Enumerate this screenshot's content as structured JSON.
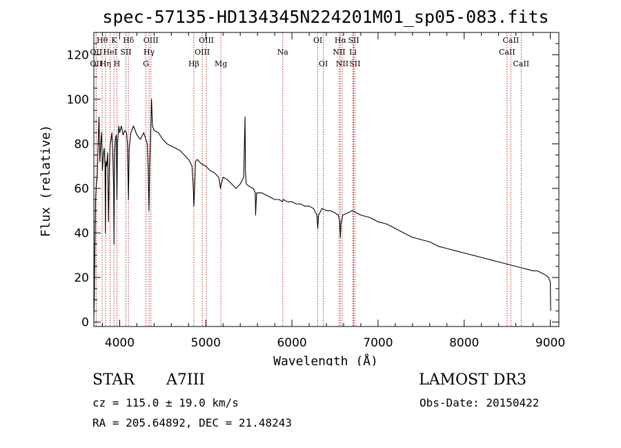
{
  "chart_data": {
    "type": "line",
    "title": "spec-57135-HD134345N224201M01_sp05-083.fits",
    "xlabel": "Wavelength (Å)",
    "ylabel": "Flux (relative)",
    "xlim": [
      3700,
      9100
    ],
    "ylim": [
      -2,
      130
    ],
    "xticks": [
      4000,
      5000,
      6000,
      7000,
      8000,
      9000
    ],
    "yticks": [
      0,
      20,
      40,
      60,
      80,
      100,
      120
    ],
    "grid": false,
    "series": [
      {
        "name": "spectrum",
        "color": "#000000",
        "x": [
          3700,
          3705,
          3710,
          3720,
          3730,
          3740,
          3750,
          3760,
          3770,
          3780,
          3790,
          3800,
          3810,
          3820,
          3830,
          3835,
          3840,
          3850,
          3860,
          3870,
          3880,
          3890,
          3900,
          3910,
          3920,
          3930,
          3934,
          3940,
          3950,
          3960,
          3968,
          3975,
          3990,
          4000,
          4020,
          4040,
          4060,
          4080,
          4090,
          4102,
          4110,
          4130,
          4160,
          4200,
          4240,
          4280,
          4320,
          4330,
          4340,
          4350,
          4360,
          4370,
          4380,
          4400,
          4450,
          4500,
          4550,
          4600,
          4650,
          4700,
          4750,
          4800,
          4840,
          4855,
          4861,
          4868,
          4880,
          4900,
          4950,
          5000,
          5050,
          5100,
          5150,
          5170,
          5180,
          5200,
          5250,
          5300,
          5350,
          5400,
          5440,
          5455,
          5460,
          5470,
          5500,
          5550,
          5575,
          5578,
          5590,
          5650,
          5700,
          5750,
          5800,
          5850,
          5890,
          5900,
          5950,
          6000,
          6050,
          6100,
          6150,
          6200,
          6250,
          6290,
          6300,
          6310,
          6350,
          6400,
          6450,
          6500,
          6540,
          6555,
          6563,
          6570,
          6590,
          6650,
          6700,
          6750,
          6800,
          6900,
          7000,
          7100,
          7200,
          7300,
          7400,
          7500,
          7600,
          7700,
          7800,
          7900,
          8000,
          8100,
          8200,
          8300,
          8400,
          8500,
          8600,
          8700,
          8800,
          8850,
          8900,
          8950,
          8980,
          9000,
          9005
        ],
        "y": [
          2,
          10,
          28,
          55,
          62,
          65,
          80,
          92,
          72,
          80,
          85,
          68,
          75,
          78,
          70,
          40,
          72,
          70,
          76,
          45,
          70,
          80,
          82,
          85,
          75,
          60,
          35,
          75,
          82,
          84,
          55,
          80,
          88,
          85,
          88,
          84,
          86,
          85,
          80,
          55,
          78,
          85,
          88,
          84,
          82,
          85,
          80,
          70,
          50,
          72,
          85,
          100,
          88,
          86,
          85,
          82,
          80,
          79,
          78,
          77,
          75,
          73,
          70,
          60,
          52,
          58,
          72,
          73,
          71,
          70,
          68,
          67,
          65,
          60,
          62,
          65,
          64,
          62,
          60,
          62,
          65,
          92,
          68,
          62,
          61,
          60,
          58,
          48,
          58,
          58,
          57,
          56,
          55,
          55,
          54,
          55,
          54,
          54,
          53,
          53,
          52,
          52,
          51,
          48,
          42,
          48,
          51,
          50,
          50,
          49,
          48,
          45,
          38,
          44,
          48,
          49,
          50,
          49,
          48,
          47,
          45,
          44,
          42,
          40,
          38,
          37,
          36,
          34,
          33,
          32,
          31,
          30,
          29,
          28,
          27,
          26,
          25,
          24,
          23,
          23,
          22,
          21,
          20,
          18,
          5
        ]
      }
    ],
    "line_markers": [
      {
        "label": "Hθ",
        "x": 3797,
        "row": 1
      },
      {
        "label": "OII",
        "x": 3727,
        "row": 2
      },
      {
        "label": "OII",
        "x": 3727,
        "row": 3
      },
      {
        "label": "Hη",
        "x": 3835,
        "row": 3
      },
      {
        "label": "K",
        "x": 3934,
        "row": 1
      },
      {
        "label": "HeI",
        "x": 3889,
        "row": 2
      },
      {
        "label": "H",
        "x": 3968,
        "row": 3
      },
      {
        "label": "Hδ",
        "x": 4102,
        "row": 1
      },
      {
        "label": "SII",
        "x": 4072,
        "row": 2
      },
      {
        "label": "OIII",
        "x": 4363,
        "row": 1
      },
      {
        "label": "Hγ",
        "x": 4341,
        "row": 2
      },
      {
        "label": "G",
        "x": 4305,
        "row": 3
      },
      {
        "label": "OIII",
        "x": 5007,
        "row": 1
      },
      {
        "label": "OIII",
        "x": 4959,
        "row": 2
      },
      {
        "label": "Hβ",
        "x": 4861,
        "row": 3
      },
      {
        "label": "Mg",
        "x": 5175,
        "row": 3
      },
      {
        "label": "Na",
        "x": 5893,
        "row": 2
      },
      {
        "label": "OI",
        "x": 6300,
        "row": 1
      },
      {
        "label": "OI",
        "x": 6364,
        "row": 3
      },
      {
        "label": "Hα",
        "x": 6563,
        "row": 1
      },
      {
        "label": "NII",
        "x": 6548,
        "row": 2
      },
      {
        "label": "NII",
        "x": 6584,
        "row": 3
      },
      {
        "label": "SII",
        "x": 6717,
        "row": 1
      },
      {
        "label": "Li",
        "x": 6708,
        "row": 2
      },
      {
        "label": "SII",
        "x": 6731,
        "row": 3
      },
      {
        "label": "CaII",
        "x": 8542,
        "row": 1
      },
      {
        "label": "CaII",
        "x": 8498,
        "row": 2
      },
      {
        "label": "CaII",
        "x": 8662,
        "row": 3
      }
    ]
  },
  "info": {
    "object_class": "STAR",
    "subclass": "A7III",
    "survey": "LAMOST DR3",
    "cz": "cz = 115.0 ± 19.0 km/s",
    "obs_date": "Obs-Date: 20150422",
    "radec": "RA = 205.64892, DEC =  21.48243"
  }
}
